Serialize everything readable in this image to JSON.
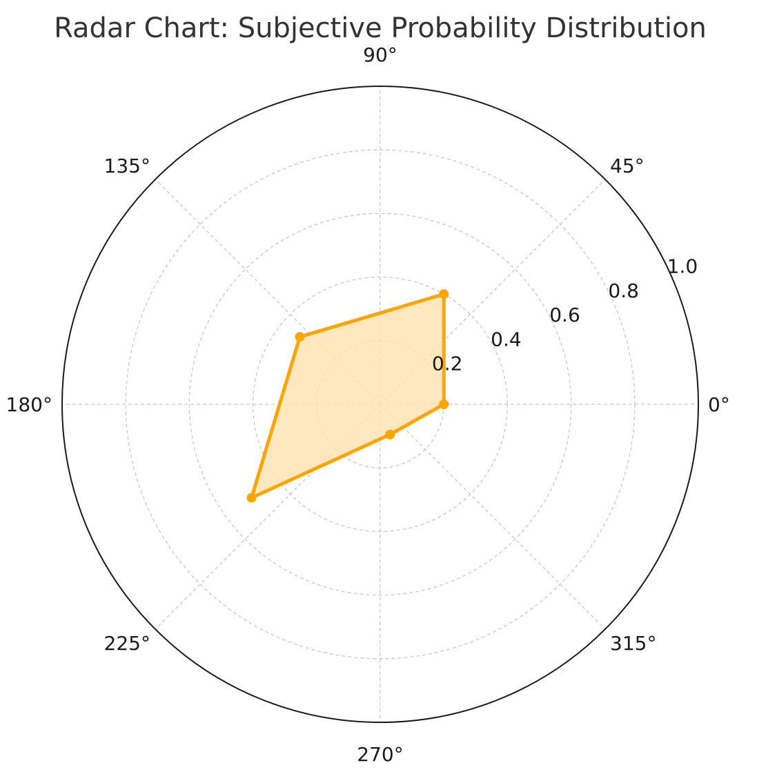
{
  "chart_data": {
    "type": "radar",
    "title": "Radar Chart: Subjective Probability Distribution",
    "angle_labels": [
      "0°",
      "45°",
      "90°",
      "135°",
      "180°",
      "225°",
      "270°",
      "315°"
    ],
    "radial_ticks": [
      0.2,
      0.4,
      0.6,
      0.8,
      1.0
    ],
    "radial_tick_labels": [
      "0.2",
      "0.4",
      "0.6",
      "0.8",
      "1.0"
    ],
    "rlim": [
      0,
      1.0
    ],
    "grid": true,
    "series": [
      {
        "angles_deg": [
          0,
          60,
          140,
          216,
          288
        ],
        "values": [
          0.2,
          0.4,
          0.33,
          0.5,
          0.1
        ],
        "color": "#FFA500",
        "fill_color": "#FFE4B5"
      }
    ]
  }
}
